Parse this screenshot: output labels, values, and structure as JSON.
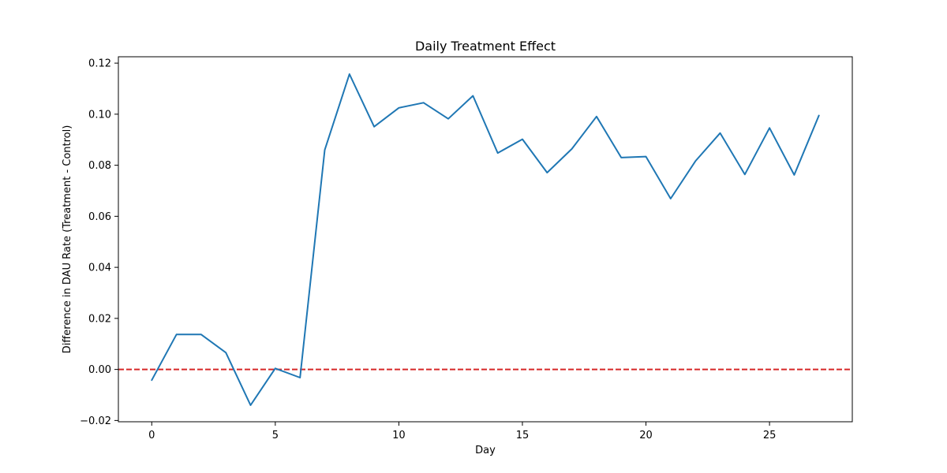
{
  "chart_data": {
    "type": "line",
    "title": "Daily Treatment Effect",
    "xlabel": "Day",
    "ylabel": "Difference in DAU Rate (Treatment - Control)",
    "xlim": [
      -1.35,
      28.35
    ],
    "ylim": [
      -0.0205,
      0.1225
    ],
    "xticks": [
      0,
      5,
      10,
      15,
      20,
      25
    ],
    "xtick_labels": [
      "0",
      "5",
      "10",
      "15",
      "20",
      "25"
    ],
    "yticks": [
      -0.02,
      0,
      0.02,
      0.04,
      0.06,
      0.08,
      0.1,
      0.12
    ],
    "ytick_labels": [
      "−0.02",
      "0.00",
      "0.02",
      "0.04",
      "0.06",
      "0.08",
      "0.10",
      "0.12"
    ],
    "grid": false,
    "series": [
      {
        "color": "#1f77b4",
        "x": [
          0,
          1,
          2,
          3,
          4,
          5,
          6,
          7,
          8,
          9,
          10,
          11,
          12,
          13,
          14,
          15,
          16,
          17,
          18,
          19,
          20,
          21,
          22,
          23,
          24,
          25,
          26,
          27
        ],
        "y": [
          -0.0042,
          0.0137,
          0.0137,
          0.0066,
          -0.014,
          0.0004,
          -0.0032,
          0.086,
          0.1157,
          0.0951,
          0.1025,
          0.1045,
          0.0982,
          0.1072,
          0.0848,
          0.0902,
          0.0771,
          0.0864,
          0.0991,
          0.083,
          0.0834,
          0.0669,
          0.0816,
          0.0926,
          0.0764,
          0.0946,
          0.0762,
          0.0995
        ]
      }
    ],
    "reference_line": {
      "y": 0,
      "color": "#d62728",
      "style": "dashed"
    }
  }
}
